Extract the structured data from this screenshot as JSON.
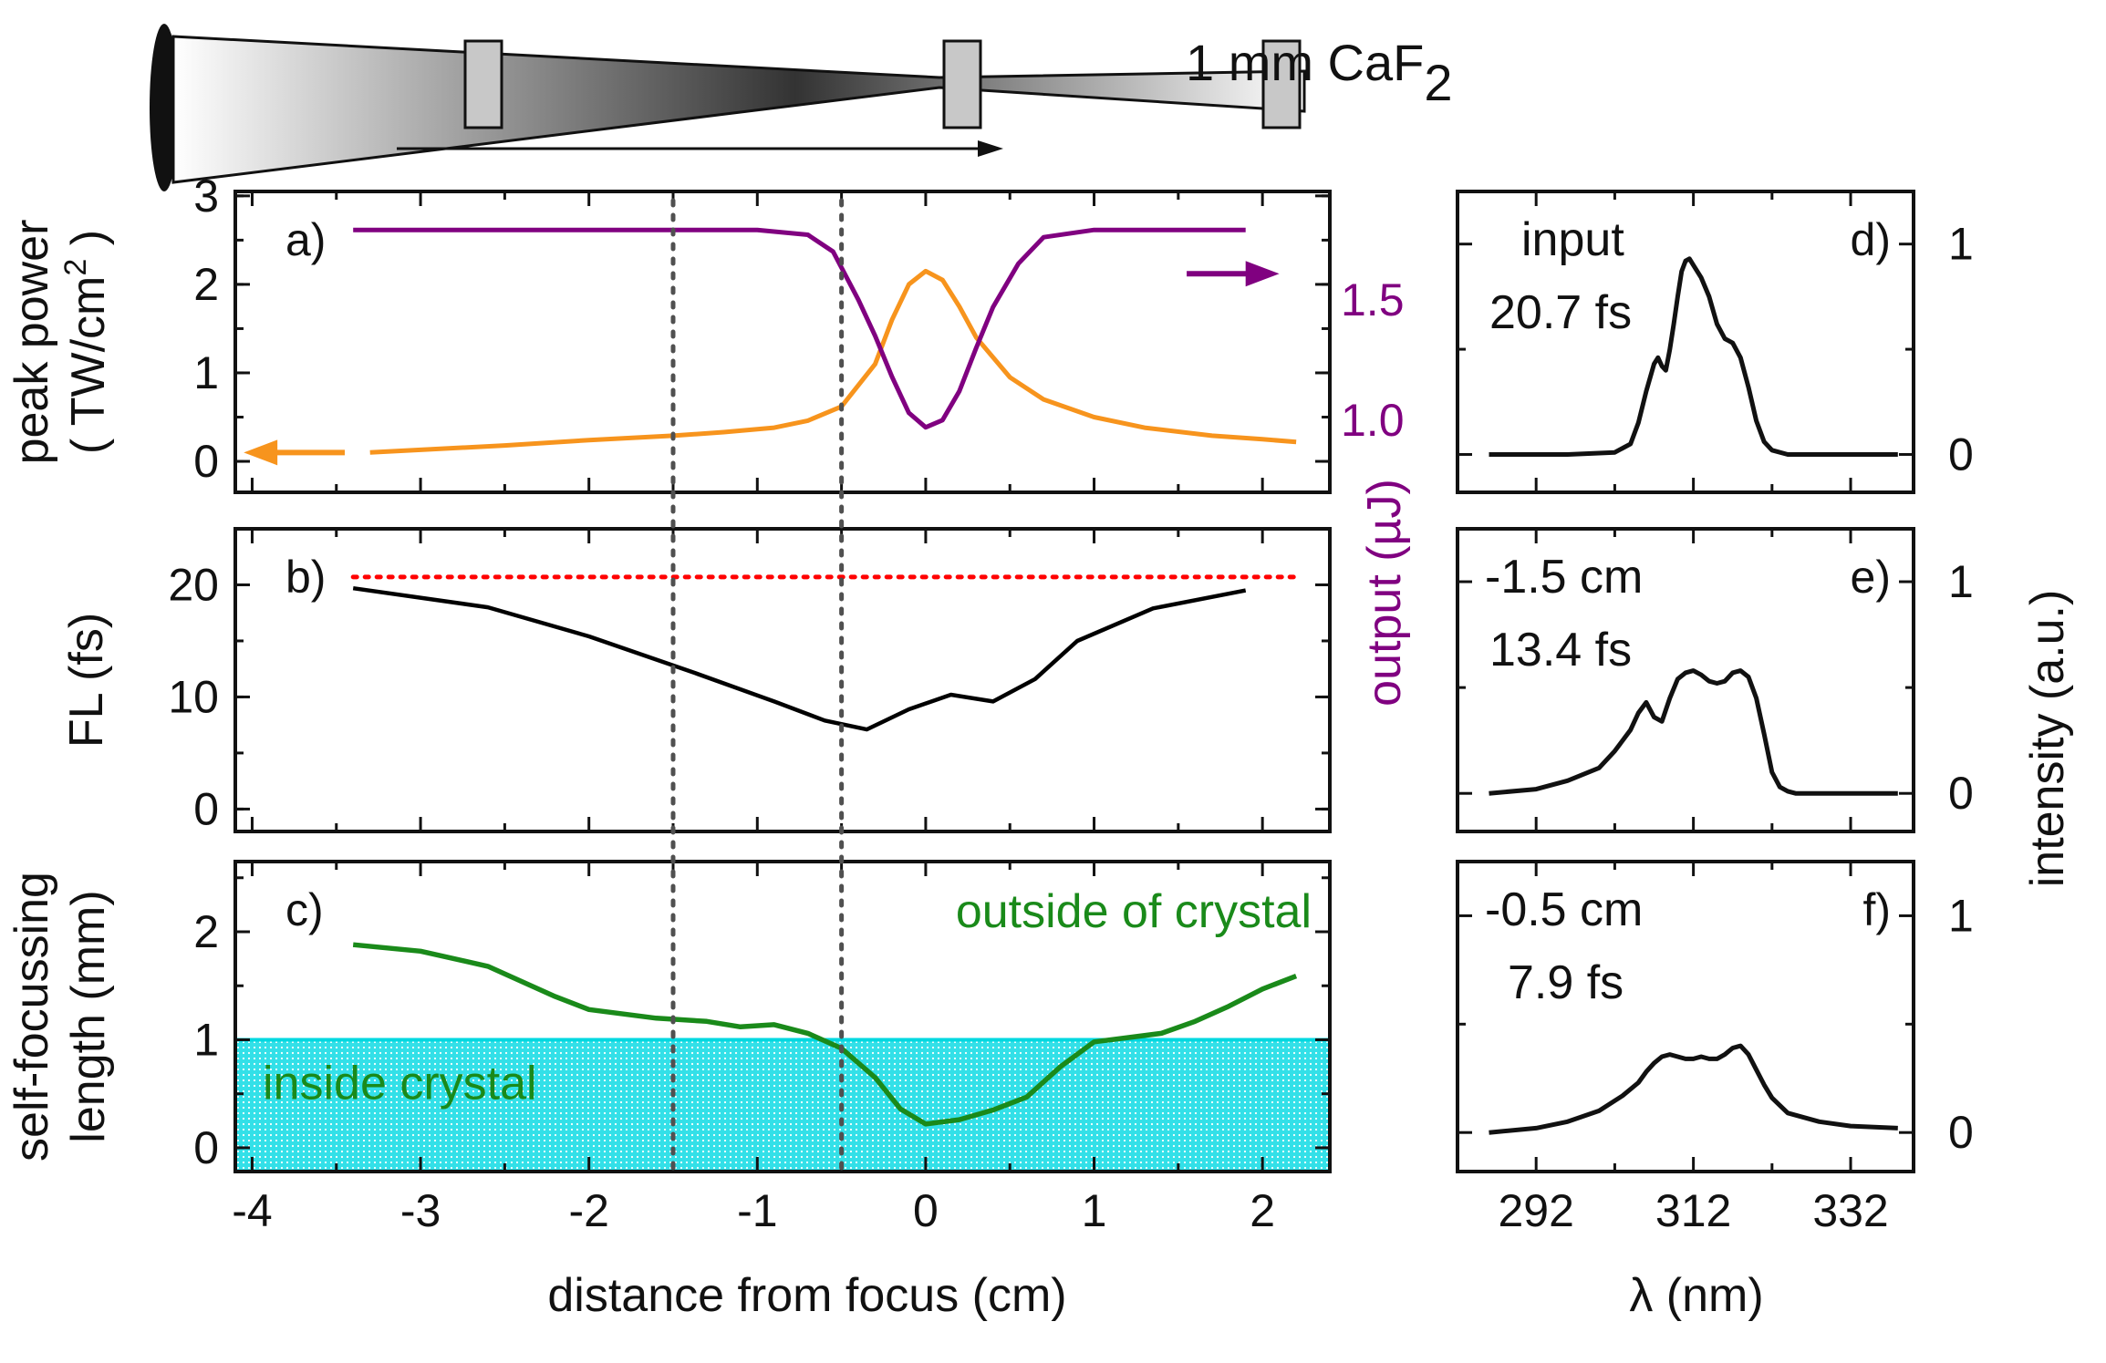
{
  "setup": {
    "label_main": "1 mm CaF",
    "label_sub": "2",
    "crystal_positions_cm": [
      -3.0,
      -1.5,
      -0.5
    ]
  },
  "colors": {
    "peak_power": "#f7941d",
    "output": "#800080",
    "fl": "#000000",
    "input_fl": "#ff0000",
    "self_focusing": "#1a8a1a",
    "inside_fill": "#33e0e8",
    "markers": "#505050"
  },
  "x_axis": {
    "label": "distance from focus (cm)",
    "lim": [
      -4.1,
      2.4
    ],
    "ticks": [
      "-4",
      "-3",
      "-2",
      "-1",
      "0",
      "1",
      "2"
    ]
  },
  "markers_cm": [
    -1.5,
    -0.5
  ],
  "chart_data": [
    {
      "id": "a",
      "type": "line",
      "panel_label": "a)",
      "ylabel_line1": "peak power",
      "ylabel_line2": "( TW/cm",
      "ylabel_sup": "2",
      "ylabel_end": " )",
      "ylim": [
        -0.35,
        3.05
      ],
      "yticks": [
        "0",
        "1",
        "2",
        "3"
      ],
      "y2label": "output (µJ)",
      "y2lim": [
        0.7,
        1.95
      ],
      "y2ticks": [
        "1.0",
        "1.5"
      ],
      "series": [
        {
          "name": "peak power",
          "axis": "left",
          "x": [
            -3.3,
            -3.0,
            -2.5,
            -2.0,
            -1.5,
            -1.2,
            -0.9,
            -0.7,
            -0.5,
            -0.3,
            -0.2,
            -0.1,
            0.0,
            0.1,
            0.2,
            0.3,
            0.5,
            0.7,
            1.0,
            1.3,
            1.7,
            2.0,
            2.2
          ],
          "y": [
            0.1,
            0.13,
            0.18,
            0.24,
            0.29,
            0.33,
            0.38,
            0.46,
            0.62,
            1.1,
            1.6,
            2.0,
            2.15,
            2.05,
            1.75,
            1.4,
            0.95,
            0.7,
            0.5,
            0.38,
            0.29,
            0.25,
            0.22
          ]
        },
        {
          "name": "output",
          "axis": "right",
          "x": [
            -3.4,
            -2.0,
            -1.0,
            -0.7,
            -0.55,
            -0.4,
            -0.3,
            -0.2,
            -0.1,
            0.0,
            0.1,
            0.2,
            0.3,
            0.4,
            0.55,
            0.7,
            1.0,
            1.5,
            1.9
          ],
          "y": [
            1.79,
            1.79,
            1.79,
            1.77,
            1.7,
            1.5,
            1.35,
            1.18,
            1.03,
            0.97,
            1.0,
            1.12,
            1.3,
            1.47,
            1.65,
            1.76,
            1.79,
            1.79,
            1.79
          ]
        }
      ]
    },
    {
      "id": "b",
      "type": "line",
      "panel_label": "b)",
      "ylabel": "FL  (fs)",
      "ylim": [
        -2.0,
        25.0
      ],
      "yticks": [
        "0",
        "10",
        "20"
      ],
      "series": [
        {
          "name": "FL",
          "x": [
            -3.4,
            -2.6,
            -2.0,
            -1.4,
            -0.9,
            -0.6,
            -0.35,
            -0.1,
            0.15,
            0.4,
            0.65,
            0.9,
            1.35,
            1.9
          ],
          "y": [
            19.7,
            18.0,
            15.4,
            12.3,
            9.6,
            7.9,
            7.1,
            8.9,
            10.2,
            9.6,
            11.6,
            15.0,
            17.9,
            19.5
          ]
        },
        {
          "name": "input FL",
          "style": "dotted",
          "x": [
            -3.4,
            2.2
          ],
          "y": [
            20.7,
            20.7
          ]
        }
      ]
    },
    {
      "id": "c",
      "type": "line",
      "panel_label": "c)",
      "ylabel_line1": "self-focussing",
      "ylabel_line2": "length (mm)",
      "ylim": [
        -0.22,
        2.65
      ],
      "yticks": [
        "0",
        "1",
        "2"
      ],
      "inside_threshold": 1.0,
      "label_outside": "outside of crystal",
      "label_inside": "inside crystal",
      "series": [
        {
          "name": "self-focussing length",
          "x": [
            -3.4,
            -3.0,
            -2.6,
            -2.2,
            -2.0,
            -1.6,
            -1.3,
            -1.1,
            -0.9,
            -0.7,
            -0.5,
            -0.3,
            -0.15,
            0.0,
            0.2,
            0.4,
            0.6,
            0.8,
            1.0,
            1.2,
            1.4,
            1.6,
            1.8,
            2.0,
            2.2
          ],
          "y": [
            1.88,
            1.82,
            1.68,
            1.4,
            1.28,
            1.2,
            1.17,
            1.12,
            1.14,
            1.06,
            0.92,
            0.65,
            0.36,
            0.22,
            0.26,
            0.35,
            0.47,
            0.75,
            0.98,
            1.02,
            1.06,
            1.17,
            1.31,
            1.47,
            1.59
          ]
        }
      ]
    },
    {
      "id": "d",
      "type": "line",
      "panel_label": "d)",
      "label_top": "input",
      "label_fl": "20.7 fs",
      "xlim": [
        282,
        340
      ],
      "ylim": [
        -0.18,
        1.25
      ],
      "yticks": [
        "0",
        "1"
      ],
      "series": [
        {
          "name": "spectrum input",
          "x": [
            286,
            296,
            302,
            304,
            305,
            306,
            307,
            307.5,
            308,
            308.5,
            309,
            309.5,
            310,
            310.5,
            311,
            311.5,
            312,
            313,
            314,
            315,
            316,
            316.5,
            317,
            318,
            319,
            320,
            321,
            322,
            324,
            330,
            338
          ],
          "y": [
            0.0,
            0.0,
            0.01,
            0.05,
            0.15,
            0.3,
            0.43,
            0.46,
            0.42,
            0.4,
            0.5,
            0.62,
            0.75,
            0.87,
            0.92,
            0.93,
            0.9,
            0.84,
            0.75,
            0.62,
            0.55,
            0.54,
            0.53,
            0.46,
            0.32,
            0.16,
            0.06,
            0.02,
            0.0,
            0.0,
            0.0
          ]
        }
      ]
    },
    {
      "id": "e",
      "type": "line",
      "panel_label": "e)",
      "label_top": "-1.5 cm",
      "label_fl": "13.4 fs",
      "xlim": [
        282,
        340
      ],
      "ylim": [
        -0.18,
        1.25
      ],
      "yticks": [
        "0",
        "1"
      ],
      "series": [
        {
          "name": "spectrum -1.5 cm",
          "x": [
            286,
            292,
            296,
            300,
            302,
            304,
            305,
            306,
            307,
            308,
            309,
            310,
            311,
            312,
            313,
            314,
            315,
            316,
            317,
            318,
            319,
            320,
            321,
            322,
            323,
            324,
            325,
            328,
            338
          ],
          "y": [
            0.0,
            0.02,
            0.06,
            0.12,
            0.2,
            0.3,
            0.38,
            0.43,
            0.36,
            0.34,
            0.45,
            0.54,
            0.57,
            0.58,
            0.56,
            0.53,
            0.52,
            0.53,
            0.57,
            0.58,
            0.55,
            0.45,
            0.28,
            0.1,
            0.03,
            0.01,
            0.0,
            0.0,
            0.0
          ]
        }
      ]
    },
    {
      "id": "f",
      "type": "line",
      "panel_label": "f)",
      "label_top": "-0.5 cm",
      "label_fl": "7.9 fs",
      "xlim": [
        282,
        340
      ],
      "ylim": [
        -0.18,
        1.25
      ],
      "yticks": [
        "0",
        "1"
      ],
      "xlabel": "λ (nm)",
      "xticks": [
        "292",
        "312",
        "332"
      ],
      "series": [
        {
          "name": "spectrum -0.5 cm",
          "x": [
            286,
            292,
            296,
            300,
            303,
            305,
            306,
            307,
            308,
            309,
            310,
            311,
            312,
            313,
            314,
            315,
            316,
            317,
            318,
            319,
            320,
            321,
            322,
            324,
            328,
            332,
            338
          ],
          "y": [
            0.0,
            0.02,
            0.05,
            0.1,
            0.17,
            0.23,
            0.28,
            0.32,
            0.35,
            0.36,
            0.35,
            0.34,
            0.34,
            0.35,
            0.34,
            0.34,
            0.36,
            0.39,
            0.4,
            0.36,
            0.29,
            0.22,
            0.16,
            0.09,
            0.05,
            0.03,
            0.02
          ]
        }
      ]
    }
  ],
  "right_axis_label": "intensity (a.u.)"
}
